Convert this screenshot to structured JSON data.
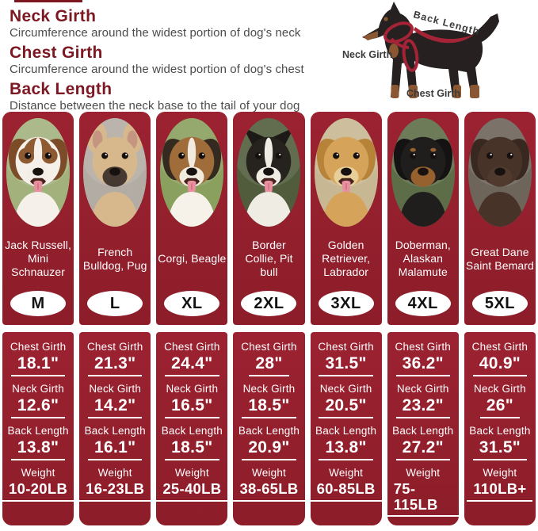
{
  "header": {
    "definitions": [
      {
        "term": "Neck Girth",
        "description": "Circumference around the widest portion of dog's neck"
      },
      {
        "term": "Chest Girth",
        "description": "Circumference around the widest portion of dog's chest"
      },
      {
        "term": "Back Length",
        "description": "Distance between the neck base to the tail of your dog"
      }
    ]
  },
  "diagram": {
    "labels": {
      "back": "Back Length",
      "neck": "Neck Girth",
      "chest": "Chest Girth"
    }
  },
  "measurement_labels": {
    "chest": "Chest Girth",
    "neck": "Neck Girth",
    "back": "Back Length",
    "weight": "Weight"
  },
  "colors": {
    "panel_red": "#9c2231",
    "panel_red_dark": "#8c1d29",
    "title_red": "#7d1823",
    "desc_gray": "#4c4c4c",
    "harness_red": "#a42336",
    "badge_bg": "#ffffff",
    "text_white": "#ffffff",
    "diagram_dog_black": "#262120",
    "diagram_dog_tan": "#8a5732",
    "diagram_label_gray": "#3a3a3a"
  },
  "sizes": [
    {
      "size": "M",
      "breeds": "Jack Russell, Mini Schnauzer",
      "chest_girth": "18.1\"",
      "neck_girth": "12.6\"",
      "back_length": "13.8\"",
      "weight": "10-20LB",
      "photo": {
        "bg": "#a3b27d",
        "fur": "#f5f1ea",
        "ears": "floppy",
        "ear": "#7c4c28",
        "cap": "#8d5a31",
        "eyepatch": "#8d5a31",
        "blaze": "#f5f1ea",
        "muzzle": "#f3efe8",
        "tongue": true,
        "chest": "#f5f1ea"
      }
    },
    {
      "size": "L",
      "breeds": "French Bulldog, Pug",
      "chest_girth": "21.3\"",
      "neck_girth": "14.2\"",
      "back_length": "16.1\"",
      "weight": "16-23LB",
      "photo": {
        "bg": "#b3aca4",
        "fur": "#d7b88c",
        "ears": "bat",
        "ear": "#d7b88c",
        "earInner": "#c49682",
        "muzzle": "#453931",
        "tongue": false,
        "chest": "#d7b88c"
      }
    },
    {
      "size": "XL",
      "breeds": "Corgi, Beagle",
      "chest_girth": "24.4\"",
      "neck_girth": "16.5\"",
      "back_length": "18.5\"",
      "weight": "25-40LB",
      "photo": {
        "bg": "#8aa05e",
        "fur": "#a06c3a",
        "ears": "floppy",
        "ear": "#352a20",
        "blaze": "#f1ebdf",
        "muzzle": "#f1ebdf",
        "tongue": true,
        "chest": "#f6f2ea"
      }
    },
    {
      "size": "2XL",
      "breeds": "Border Collie, Pit bull",
      "chest_girth": "28\"",
      "neck_girth": "18.5\"",
      "back_length": "20.9\"",
      "weight": "38-65LB",
      "photo": {
        "bg": "#515c3c",
        "fur": "#26221e",
        "ears": "point",
        "ear": "#1c1916",
        "blaze": "#efece4",
        "muzzle": "#efece4",
        "tongue": true,
        "chest": "#efece4"
      }
    },
    {
      "size": "3XL",
      "breeds": "Golden Retriever, Labrador",
      "chest_girth": "31.5\"",
      "neck_girth": "20.5\"",
      "back_length": "13.8\"",
      "weight": "60-85LB",
      "photo": {
        "bg": "#c8b793",
        "fur": "#d5a359",
        "ears": "floppy",
        "ear": "#b68338",
        "muzzle": "#e8cf9a",
        "tongue": true,
        "chest": "#d5a359"
      }
    },
    {
      "size": "4XL",
      "breeds": "Doberman, Alaskan Malamute",
      "chest_girth": "36.2\"",
      "neck_girth": "23.2\"",
      "back_length": "27.2\"",
      "weight": "75-115LB",
      "photo": {
        "bg": "#5d6d47",
        "fur": "#201d1d",
        "ears": "floppy",
        "ear": "#141212",
        "muzzle": "#96602f",
        "brows": "#96602f",
        "tongue": false,
        "chest": "#201d1d"
      }
    },
    {
      "size": "5XL",
      "breeds": "Great Dane Saint Bemard",
      "chest_girth": "40.9\"",
      "neck_girth": "26\"",
      "back_length": "31.5\"",
      "weight": "110LB+",
      "photo": {
        "bg": "#6d645a",
        "fur": "#483329",
        "ears": "floppy",
        "ear": "#392820",
        "muzzle": "#503a2e",
        "tongue": false,
        "chest": "#483329"
      }
    }
  ]
}
